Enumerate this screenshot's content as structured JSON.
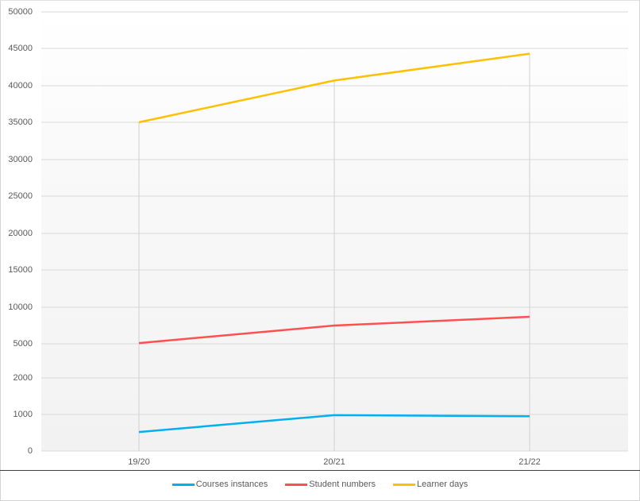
{
  "chart_data": {
    "type": "line",
    "title": "",
    "xlabel": "",
    "ylabel": "",
    "categories": [
      "19/20",
      "20/21",
      "21/22"
    ],
    "series": [
      {
        "name": "Courses instances",
        "color": "#00b0f0",
        "values": [
          520,
          980,
          950
        ]
      },
      {
        "name": "Student numbers",
        "color": "#ff5050",
        "values": [
          5100,
          7500,
          8700
        ]
      },
      {
        "name": "Learner days",
        "color": "#ffc000",
        "values": [
          35000,
          40700,
          44300
        ]
      }
    ],
    "yticks": [
      50000,
      45000,
      40000,
      35000,
      30000,
      25000,
      20000,
      15000,
      10000,
      5000,
      2000,
      1000,
      0
    ],
    "ytick_pixels": [
      15,
      61,
      108,
      154,
      201,
      247,
      294,
      340,
      387,
      433,
      476,
      522,
      568
    ],
    "ylim": [
      0,
      50000
    ],
    "yscale_note": "non-uniform axis: 0, 1000, 2000, 5000 then steps of 5000",
    "grid": true,
    "legend_position": "bottom"
  },
  "legend": {
    "items": [
      {
        "label": "Courses instances",
        "color": "#00b0f0"
      },
      {
        "label": "Student numbers",
        "color": "#ff5050"
      },
      {
        "label": "Learner days",
        "color": "#ffc000"
      }
    ]
  }
}
